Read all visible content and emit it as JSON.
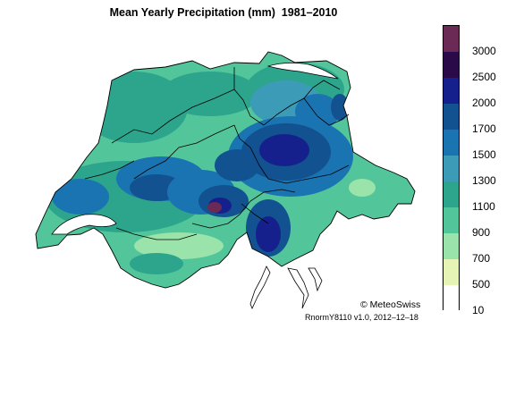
{
  "title": "Mean Yearly Precipitation (mm)  1981–2010",
  "legend": {
    "labels": [
      "3000",
      "2500",
      "2000",
      "1700",
      "1500",
      "1300",
      "1100",
      "900",
      "700",
      "500",
      "10"
    ],
    "colors": [
      "#6a2a55",
      "#2a0a48",
      "#16208c",
      "#125290",
      "#1b74b2",
      "#3c9cb8",
      "#2ca58c",
      "#53c59a",
      "#9ae3aa",
      "#e6f4b6",
      "#ffffff"
    ]
  },
  "credit": "© MeteoSwiss",
  "version": "RnormY8110 v1.0, 2012–12–18"
}
